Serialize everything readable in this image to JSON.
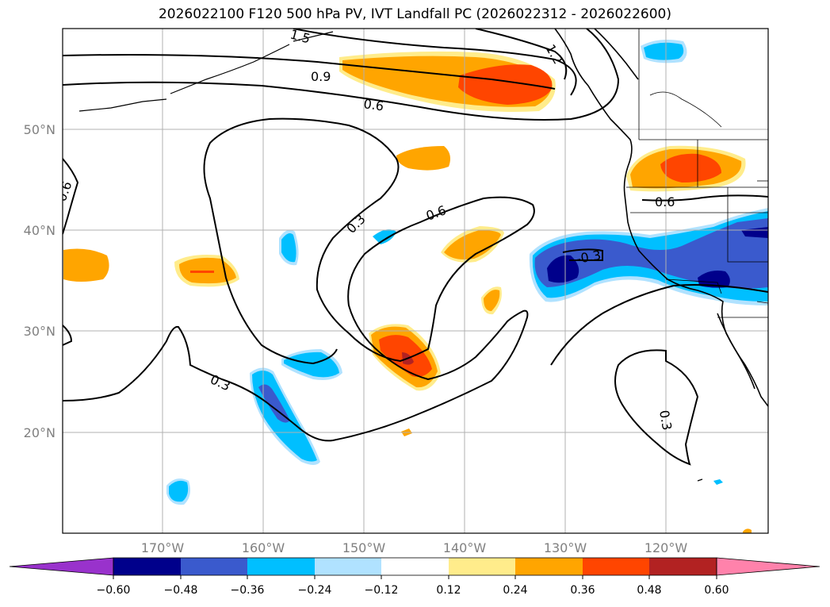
{
  "title": "2026022100 F120 500 hPa PV, IVT Landfall PC (2026022312 - 2026022600)",
  "lat_labels": [
    "50°N",
    "40°N",
    "30°N",
    "20°N"
  ],
  "lon_labels": [
    "170°W",
    "160°W",
    "150°W",
    "140°W",
    "130°W",
    "120°W"
  ],
  "contour_labels": [
    "0.9",
    "0.6",
    "1.2",
    "1.5",
    "0.6",
    "0.3",
    "0.6",
    "0.6",
    "-0.3",
    "0.3",
    "0.3"
  ],
  "colorbar": {
    "ticks": [
      "−0.60",
      "−0.48",
      "−0.36",
      "−0.24",
      "−0.12",
      "0.12",
      "0.24",
      "0.36",
      "0.48",
      "0.60"
    ],
    "colors": [
      "#9932cc",
      "#00008b",
      "#3a5acd",
      "#00bfff",
      "#b0e2ff",
      "#ffffff",
      "#ffec8b",
      "#ffa500",
      "#ff4500",
      "#b22222",
      "#ff82ab"
    ]
  },
  "colors": {
    "grid": "#b0b0b0",
    "contour": "#000000"
  }
}
